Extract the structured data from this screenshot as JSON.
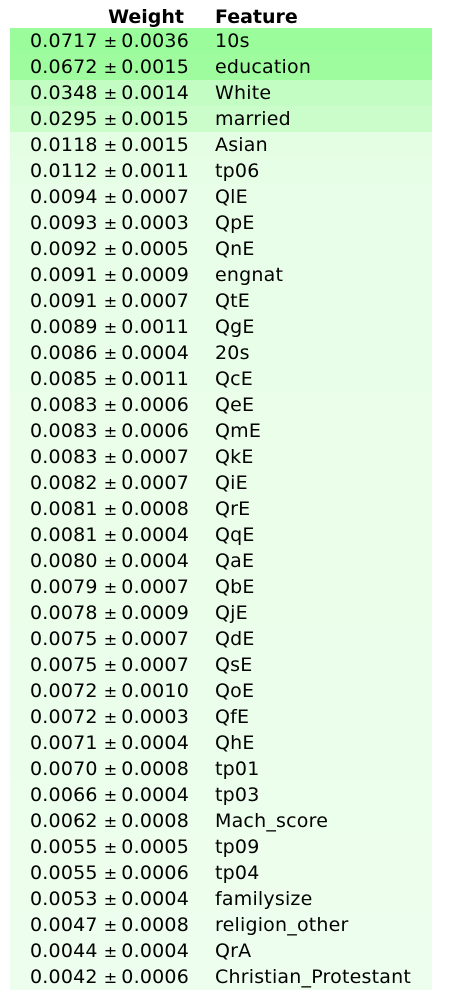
{
  "headers": {
    "weight": "Weight",
    "feature": "Feature"
  },
  "pm_symbol": "±",
  "rows": [
    {
      "weight": "0.0717",
      "std": "0.0036",
      "feature": "10s",
      "bg": "#9afc9a"
    },
    {
      "weight": "0.0672",
      "std": "0.0015",
      "feature": "education",
      "bg": "#9efc9e"
    },
    {
      "weight": "0.0348",
      "std": "0.0014",
      "feature": "White",
      "bg": "#c4fdc4"
    },
    {
      "weight": "0.0295",
      "std": "0.0015",
      "feature": "married",
      "bg": "#cbfdcb"
    },
    {
      "weight": "0.0118",
      "std": "0.0015",
      "feature": "Asian",
      "bg": "#e4fee4"
    },
    {
      "weight": "0.0112",
      "std": "0.0011",
      "feature": "tp06",
      "bg": "#e5fee5"
    },
    {
      "weight": "0.0094",
      "std": "0.0007",
      "feature": "QlE",
      "bg": "#e8fee8"
    },
    {
      "weight": "0.0093",
      "std": "0.0003",
      "feature": "QpE",
      "bg": "#e8fee8"
    },
    {
      "weight": "0.0092",
      "std": "0.0005",
      "feature": "QnE",
      "bg": "#e8fee8"
    },
    {
      "weight": "0.0091",
      "std": "0.0009",
      "feature": "engnat",
      "bg": "#e8fee8"
    },
    {
      "weight": "0.0091",
      "std": "0.0007",
      "feature": "QtE",
      "bg": "#e8fee8"
    },
    {
      "weight": "0.0089",
      "std": "0.0011",
      "feature": "QgE",
      "bg": "#e9fee9"
    },
    {
      "weight": "0.0086",
      "std": "0.0004",
      "feature": "20s",
      "bg": "#e9fee9"
    },
    {
      "weight": "0.0085",
      "std": "0.0011",
      "feature": "QcE",
      "bg": "#e9fee9"
    },
    {
      "weight": "0.0083",
      "std": "0.0006",
      "feature": "QeE",
      "bg": "#eafeea"
    },
    {
      "weight": "0.0083",
      "std": "0.0006",
      "feature": "QmE",
      "bg": "#eafeea"
    },
    {
      "weight": "0.0083",
      "std": "0.0007",
      "feature": "QkE",
      "bg": "#eafeea"
    },
    {
      "weight": "0.0082",
      "std": "0.0007",
      "feature": "QiE",
      "bg": "#eafeea"
    },
    {
      "weight": "0.0081",
      "std": "0.0008",
      "feature": "QrE",
      "bg": "#eafeea"
    },
    {
      "weight": "0.0081",
      "std": "0.0004",
      "feature": "QqE",
      "bg": "#eafeea"
    },
    {
      "weight": "0.0080",
      "std": "0.0004",
      "feature": "QaE",
      "bg": "#eafeea"
    },
    {
      "weight": "0.0079",
      "std": "0.0007",
      "feature": "QbE",
      "bg": "#eafeea"
    },
    {
      "weight": "0.0078",
      "std": "0.0009",
      "feature": "QjE",
      "bg": "#eafeea"
    },
    {
      "weight": "0.0075",
      "std": "0.0007",
      "feature": "QdE",
      "bg": "#ebfeeb"
    },
    {
      "weight": "0.0075",
      "std": "0.0007",
      "feature": "QsE",
      "bg": "#ebfeeb"
    },
    {
      "weight": "0.0072",
      "std": "0.0010",
      "feature": "QoE",
      "bg": "#ebfeeb"
    },
    {
      "weight": "0.0072",
      "std": "0.0003",
      "feature": "QfE",
      "bg": "#ebfeeb"
    },
    {
      "weight": "0.0071",
      "std": "0.0004",
      "feature": "QhE",
      "bg": "#ebfeeb"
    },
    {
      "weight": "0.0070",
      "std": "0.0008",
      "feature": "tp01",
      "bg": "#ebfeeb"
    },
    {
      "weight": "0.0066",
      "std": "0.0004",
      "feature": "tp03",
      "bg": "#ecfeec"
    },
    {
      "weight": "0.0062",
      "std": "0.0008",
      "feature": "Mach_score",
      "bg": "#ecfeec"
    },
    {
      "weight": "0.0055",
      "std": "0.0005",
      "feature": "tp09",
      "bg": "#edfeed"
    },
    {
      "weight": "0.0055",
      "std": "0.0006",
      "feature": "tp04",
      "bg": "#edfeed"
    },
    {
      "weight": "0.0053",
      "std": "0.0004",
      "feature": "familysize",
      "bg": "#edfeed"
    },
    {
      "weight": "0.0047",
      "std": "0.0008",
      "feature": "religion_other",
      "bg": "#eefeee"
    },
    {
      "weight": "0.0044",
      "std": "0.0004",
      "feature": "QrA",
      "bg": "#eefeee"
    },
    {
      "weight": "0.0042",
      "std": "0.0006",
      "feature": "Christian_Protestant",
      "bg": "#eefeee"
    }
  ]
}
